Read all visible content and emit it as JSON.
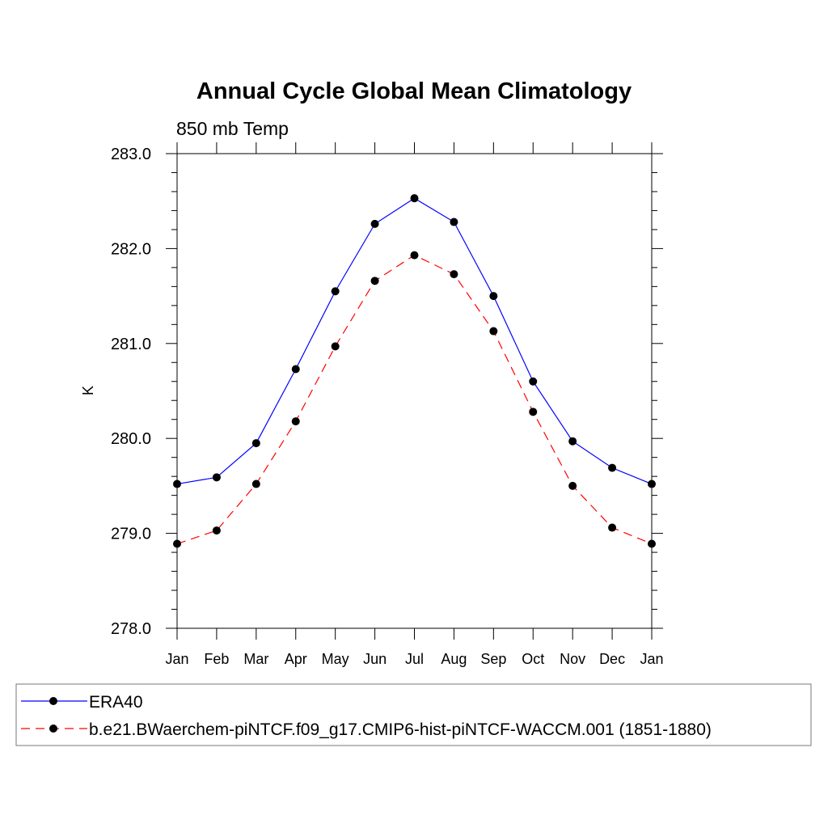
{
  "chart_data": {
    "type": "line",
    "title": "Annual Cycle Global Mean Climatology",
    "subtitle": "850 mb Temp",
    "ylabel": "K",
    "xlabel": "",
    "ylim": [
      278.0,
      283.0
    ],
    "yticks": [
      "278.0",
      "279.0",
      "280.0",
      "281.0",
      "282.0",
      "283.0"
    ],
    "categories": [
      "Jan",
      "Feb",
      "Mar",
      "Apr",
      "May",
      "Jun",
      "Jul",
      "Aug",
      "Sep",
      "Oct",
      "Nov",
      "Dec",
      "Jan"
    ],
    "grid": false,
    "legend_position": "bottom",
    "series": [
      {
        "name": "ERA40",
        "color": "#0000ff",
        "line_style": "solid",
        "marker": "filled-circle",
        "values": [
          279.52,
          279.59,
          279.95,
          280.73,
          281.55,
          282.26,
          282.53,
          282.28,
          281.5,
          280.6,
          279.97,
          279.69,
          279.52
        ]
      },
      {
        "name": "b.e21.BWaerchem-piNTCF.f09_g17.CMIP6-hist-piNTCF-WACCM.001 (1851-1880)",
        "color": "#ff0000",
        "line_style": "dashed",
        "marker": "filled-circle",
        "values": [
          278.89,
          279.03,
          279.52,
          280.18,
          280.97,
          281.66,
          281.93,
          281.73,
          281.13,
          280.28,
          279.5,
          279.06,
          278.89
        ]
      }
    ]
  }
}
